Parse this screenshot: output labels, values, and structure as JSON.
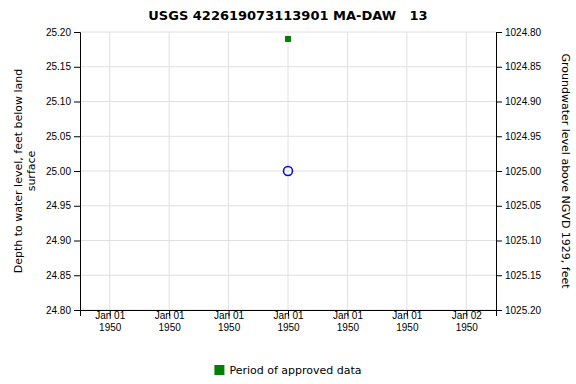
{
  "chart_data": {
    "type": "scatter",
    "title": "USGS 422619073113901 MA-DAW   13",
    "y_label": "Depth to water level, feet below land\nsurface",
    "y2_label": "Groundwater level above NGVD 1929, feet",
    "categories": [
      "Jan 01\n1950",
      "Jan 01\n1950",
      "Jan 01\n1950",
      "Jan 01\n1950",
      "Jan 01\n1950",
      "Jan 01\n1950",
      "Jan 02\n1950"
    ],
    "series": [
      {
        "color": "blue",
        "marker": "circle-open",
        "line_style": "none",
        "values": [
          null,
          null,
          null,
          25.0,
          null,
          null,
          null
        ]
      },
      {
        "name": "Period of approved data",
        "color": "green",
        "marker": "square",
        "line_style": "none",
        "values": [
          null,
          null,
          null,
          25.19,
          null,
          null,
          null
        ]
      }
    ],
    "ylim": [
      24.8,
      25.2
    ],
    "yticks": [
      {
        "value": 24.8,
        "label": "24.80"
      },
      {
        "value": 24.85,
        "label": "24.85"
      },
      {
        "value": 24.9,
        "label": "24.90"
      },
      {
        "value": 24.95,
        "label": "24.95"
      },
      {
        "value": 25.0,
        "label": "25.00"
      },
      {
        "value": 25.05,
        "label": "25.05"
      },
      {
        "value": 25.1,
        "label": "25.10"
      },
      {
        "value": 25.15,
        "label": "25.15"
      },
      {
        "value": 25.2,
        "label": "25.20"
      }
    ],
    "y2lim": [
      1025.2,
      1024.8
    ],
    "y2ticks": [
      {
        "value": 1024.8,
        "label": "1024.80"
      },
      {
        "value": 1024.85,
        "label": "1024.85"
      },
      {
        "value": 1024.9,
        "label": "1024.90"
      },
      {
        "value": 1024.95,
        "label": "1024.95"
      },
      {
        "value": 1025.0,
        "label": "1025.00"
      },
      {
        "value": 1025.05,
        "label": "1025.05"
      },
      {
        "value": 1025.1,
        "label": "1025.10"
      },
      {
        "value": 1025.15,
        "label": "1025.15"
      },
      {
        "value": 1025.2,
        "label": "1025.20"
      }
    ],
    "grid": true,
    "legend": "bottom"
  }
}
